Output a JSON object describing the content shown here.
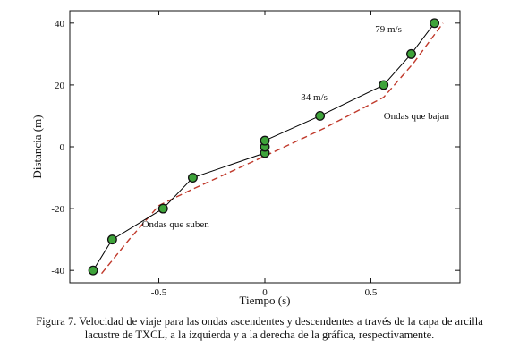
{
  "chart_data": {
    "type": "scatter",
    "xlabel": "Tiempo (s)",
    "ylabel": "Distancia (m)",
    "xlim": [
      -0.92,
      0.92
    ],
    "ylim": [
      -44,
      44
    ],
    "x_ticks": [
      -0.5,
      0,
      0.5
    ],
    "x_tick_labels": [
      "-0.5",
      "0",
      "0.5"
    ],
    "y_ticks": [
      -40,
      -20,
      0,
      20,
      40
    ],
    "y_tick_labels": [
      "-40",
      "-20",
      "0",
      "20",
      "40"
    ],
    "grid": false,
    "legend": "none",
    "series": [
      {
        "style": "markers-solid-line",
        "color": "#000000",
        "marker_fill": "#3ea33a",
        "marker_edge": "#111111",
        "x": [
          -0.81,
          -0.72,
          -0.48,
          -0.34,
          0.0,
          0.0,
          0.0,
          0.26,
          0.56,
          0.69,
          0.8
        ],
        "y": [
          -40,
          -30,
          -20,
          -10,
          -2,
          0,
          2,
          10,
          20,
          30,
          40
        ]
      },
      {
        "style": "dashed-line",
        "color": "#c0392b",
        "x": [
          -0.77,
          -0.64,
          -0.5,
          -0.35,
          0.0,
          0.28,
          0.56,
          0.7,
          0.84
        ],
        "y": [
          -41,
          -30,
          -19,
          -14,
          -3,
          6,
          16,
          27,
          40
        ]
      }
    ],
    "annotations": [
      {
        "text": "79 m/s",
        "x": 0.52,
        "y": 37
      },
      {
        "text": "34 m/s",
        "x": 0.17,
        "y": 15
      },
      {
        "text": "Ondas que bajan",
        "x": 0.56,
        "y": 9
      },
      {
        "text": "Ondas que suben",
        "x": -0.58,
        "y": -26
      }
    ]
  },
  "caption": {
    "line1": "Figura 7. Velocidad de viaje para las ondas ascendentes y descendentes a través de la capa de arcilla",
    "line2": "lacustre de TXCL, a la izquierda y a la derecha de la gráfica, respectivamente."
  }
}
